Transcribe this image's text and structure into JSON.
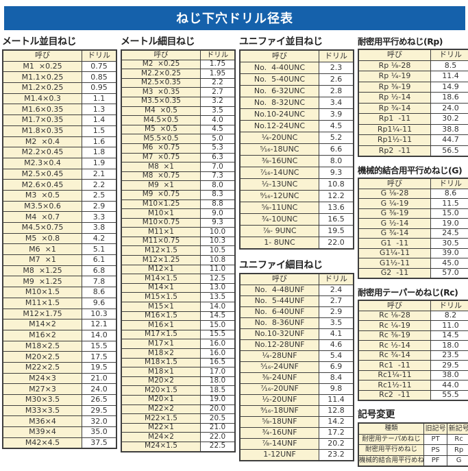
{
  "page_title": "ねじ下穴ドリル径表",
  "colors": {
    "banner_blue": "#1561ab",
    "cell_cream": "#faf3d2",
    "border": "#3d3d3d"
  },
  "tables": {
    "metric_coarse": {
      "title": "メートル並目ねじ",
      "headers": [
        "呼び",
        "ドリル"
      ],
      "rows": [
        [
          "M1  ×0.25",
          "0.75"
        ],
        [
          "M1.1×0.25",
          "0.85"
        ],
        [
          "M1.2×0.25",
          "0.95"
        ],
        [
          "M1.4×0.3",
          "1.1"
        ],
        [
          "M1.6×0.35",
          "1.3"
        ],
        [
          "M1.7×0.35",
          "1.4"
        ],
        [
          "M1.8×0.35",
          "1.5"
        ],
        [
          "M2  ×0.4",
          "1.6"
        ],
        [
          "M2.2×0.45",
          "1.8"
        ],
        [
          "M2.3×0.4",
          "1.9"
        ],
        [
          "M2.5×0.45",
          "2.1"
        ],
        [
          "M2.6×0.45",
          "2.2"
        ],
        [
          "M3  ×0.5",
          "2.5"
        ],
        [
          "M3.5×0.6",
          "2.9"
        ],
        [
          "M4  ×0.7",
          "3.3"
        ],
        [
          "M4.5×0.75",
          "3.8"
        ],
        [
          "M5  ×0.8",
          "4.2"
        ],
        [
          "M6  ×1",
          "5.1"
        ],
        [
          "M7  ×1",
          "6.1"
        ],
        [
          "M8  ×1.25",
          "6.8"
        ],
        [
          "M9  ×1.25",
          "7.8"
        ],
        [
          "M10×1.5",
          "8.6"
        ],
        [
          "M11×1.5",
          "9.6"
        ],
        [
          "M12×1.75",
          "10.3"
        ],
        [
          "M14×2",
          "12.1"
        ],
        [
          "M16×2",
          "14.0"
        ],
        [
          "M18×2.5",
          "15.5"
        ],
        [
          "M20×2.5",
          "17.5"
        ],
        [
          "M22×2.5",
          "19.5"
        ],
        [
          "M24×3",
          "21.0"
        ],
        [
          "M27×3",
          "24.0"
        ],
        [
          "M30×3.5",
          "26.5"
        ],
        [
          "M33×3.5",
          "29.5"
        ],
        [
          "M36×4",
          "32.0"
        ],
        [
          "M39×4",
          "35.0"
        ],
        [
          "M42×4.5",
          "37.5"
        ]
      ]
    },
    "metric_fine": {
      "title": "メートル細目ねじ",
      "headers": [
        "呼び",
        "ドリル"
      ],
      "rows": [
        [
          "M2  ×0.25",
          "1.75"
        ],
        [
          "M2.2×0.25",
          "1.95"
        ],
        [
          "M2.5×0.35",
          "2.2"
        ],
        [
          "M3  ×0.35",
          "2.7"
        ],
        [
          "M3.5×0.35",
          "3.2"
        ],
        [
          "M4  ×0.5",
          "3.5"
        ],
        [
          "M4.5×0.5",
          "4.0"
        ],
        [
          "M5  ×0.5",
          "4.5"
        ],
        [
          "M5.5×0.5",
          "5.0"
        ],
        [
          "M6  ×0.75",
          "5.3"
        ],
        [
          "M7  ×0.75",
          "6.3"
        ],
        [
          "M8  ×1",
          "7.0"
        ],
        [
          "M8  ×0.75",
          "7.3"
        ],
        [
          "M9  ×1",
          "8.0"
        ],
        [
          "M9  ×0.75",
          "8.3"
        ],
        [
          "M10×1.25",
          "8.8"
        ],
        [
          "M10×1",
          "9.0"
        ],
        [
          "M10×0.75",
          "9.3"
        ],
        [
          "M11×1",
          "10.0"
        ],
        [
          "M11×0.75",
          "10.3"
        ],
        [
          "M12×1.5",
          "10.5"
        ],
        [
          "M12×1.25",
          "10.8"
        ],
        [
          "M12×1",
          "11.0"
        ],
        [
          "M14×1.5",
          "12.5"
        ],
        [
          "M14×1",
          "13.0"
        ],
        [
          "M15×1.5",
          "13.5"
        ],
        [
          "M15×1",
          "14.0"
        ],
        [
          "M16×1.5",
          "14.5"
        ],
        [
          "M16×1",
          "15.0"
        ],
        [
          "M17×1.5",
          "15.5"
        ],
        [
          "M17×1",
          "16.0"
        ],
        [
          "M18×2",
          "16.0"
        ],
        [
          "M18×1.5",
          "16.5"
        ],
        [
          "M18×1",
          "17.0"
        ],
        [
          "M20×2",
          "18.0"
        ],
        [
          "M20×1.5",
          "18.5"
        ],
        [
          "M20×1",
          "19.0"
        ],
        [
          "M22×2",
          "20.0"
        ],
        [
          "M22×1.5",
          "20.5"
        ],
        [
          "M22×1",
          "21.0"
        ],
        [
          "M24×2",
          "22.0"
        ],
        [
          "M24×1.5",
          "22.5"
        ]
      ]
    },
    "unified_coarse": {
      "title": "ユニファイ並目ねじ",
      "headers": [
        "呼び",
        "ドリル"
      ],
      "rows": [
        [
          "No.  4-40UNC",
          "2.3"
        ],
        [
          "No.  5-40UNC",
          "2.6"
        ],
        [
          "No.  6-32UNC",
          "2.8"
        ],
        [
          "No.  8-32UNC",
          "3.4"
        ],
        [
          "No.10-24UNC",
          "3.9"
        ],
        [
          "No.12-24UNC",
          "4.5"
        ],
        [
          "¹⁄₄-20UNC",
          "5.2"
        ],
        [
          "⁵⁄₁₆-18UNC",
          "6.6"
        ],
        [
          "³⁄₈-16UNC",
          "8.0"
        ],
        [
          "⁷⁄₁₆-14UNC",
          "9.3"
        ],
        [
          "¹⁄₂-13UNC",
          "10.8"
        ],
        [
          "⁹⁄₁₆-12UNC",
          "12.2"
        ],
        [
          "⁵⁄₈-11UNC",
          "13.6"
        ],
        [
          "³⁄₄-10UNC",
          "16.5"
        ],
        [
          "⁷⁄₈- 9UNC",
          "19.5"
        ],
        [
          "1- 8UNC",
          "22.0"
        ]
      ]
    },
    "unified_fine": {
      "title": "ユニファイ細目ねじ",
      "headers": [
        "呼び",
        "ドリル"
      ],
      "rows": [
        [
          "No.  4-48UNF",
          "2.4"
        ],
        [
          "No.  5-44UNF",
          "2.7"
        ],
        [
          "No.  6-40UNF",
          "2.9"
        ],
        [
          "No.  8-36UNF",
          "3.5"
        ],
        [
          "No.10-32UNF",
          "4.1"
        ],
        [
          "No.12-28UNF",
          "4.6"
        ],
        [
          "¹⁄₄-28UNF",
          "5.4"
        ],
        [
          "⁵⁄₁₆-24UNF",
          "6.9"
        ],
        [
          "³⁄₈-24UNF",
          "8.4"
        ],
        [
          "⁷⁄₁₆-20UNF",
          "9.8"
        ],
        [
          "¹⁄₂-20UNF",
          "11.4"
        ],
        [
          "⁹⁄₁₆-18UNF",
          "12.8"
        ],
        [
          "⁵⁄₈-18UNF",
          "14.2"
        ],
        [
          "³⁄₄-16UNF",
          "17.2"
        ],
        [
          "⁷⁄₈-14UNF",
          "20.2"
        ],
        [
          "1-12UNF",
          "23.2"
        ]
      ]
    },
    "rp": {
      "title": "耐密用平行めねじ(Rp)",
      "headers": [
        "呼び",
        "ドリル"
      ],
      "rows": [
        [
          "Rp ¹⁄₈-28",
          "8.5"
        ],
        [
          "Rp ¹⁄₄-19",
          "11.4"
        ],
        [
          "Rp ³⁄₈-19",
          "14.9"
        ],
        [
          "Rp ¹⁄₂-14",
          "18.6"
        ],
        [
          "Rp ³⁄₄-14",
          "24.0"
        ],
        [
          "Rp1  -11",
          "30.2"
        ],
        [
          "Rp1¹⁄₄-11",
          "38.8"
        ],
        [
          "Rp1¹⁄₂-11",
          "44.7"
        ],
        [
          "Rp2  -11",
          "56.5"
        ]
      ]
    },
    "g": {
      "title": "機械的結合用平行めねじ(G)",
      "headers": [
        "呼び",
        "ドリル"
      ],
      "rows": [
        [
          "G ¹⁄₈-28",
          "8.6"
        ],
        [
          "G ¹⁄₄-19",
          "11.5"
        ],
        [
          "G ³⁄₈-19",
          "15.0"
        ],
        [
          "G ¹⁄₂-14",
          "19.0"
        ],
        [
          "G ³⁄₄-14",
          "24.5"
        ],
        [
          "G1  -11",
          "30.5"
        ],
        [
          "G1¹⁄₄-11",
          "39.0"
        ],
        [
          "G1¹⁄₂-11",
          "45.0"
        ],
        [
          "G2  -11",
          "57.0"
        ]
      ]
    },
    "rc": {
      "title": "耐密用テーパーめねじ(Rc)",
      "headers": [
        "呼び",
        "ドリル"
      ],
      "rows": [
        [
          "Rc ¹⁄₈-28",
          "8.2"
        ],
        [
          "Rc ¹⁄₄-19",
          "11.0"
        ],
        [
          "Rc ³⁄₈-19",
          "14.5"
        ],
        [
          "Rc ¹⁄₂-14",
          "18.0"
        ],
        [
          "Rc ³⁄₄-14",
          "23.5"
        ],
        [
          "Rc1  -11",
          "29.5"
        ],
        [
          "Rc1¹⁄₄-11",
          "38.0"
        ],
        [
          "Rc1¹⁄₂-11",
          "44.0"
        ],
        [
          "Rc2  -11",
          "55.5"
        ]
      ]
    },
    "symbol_change": {
      "title": "記号変更",
      "headers": [
        "種類",
        "旧記号",
        "新記号"
      ],
      "rows": [
        [
          "耐密用テーパめねじ",
          "PT",
          "Rc"
        ],
        [
          "耐密用平行めねじ",
          "PS",
          "Rp"
        ],
        [
          "機械的結合用平行めねじ",
          "PF",
          "G"
        ]
      ]
    }
  }
}
